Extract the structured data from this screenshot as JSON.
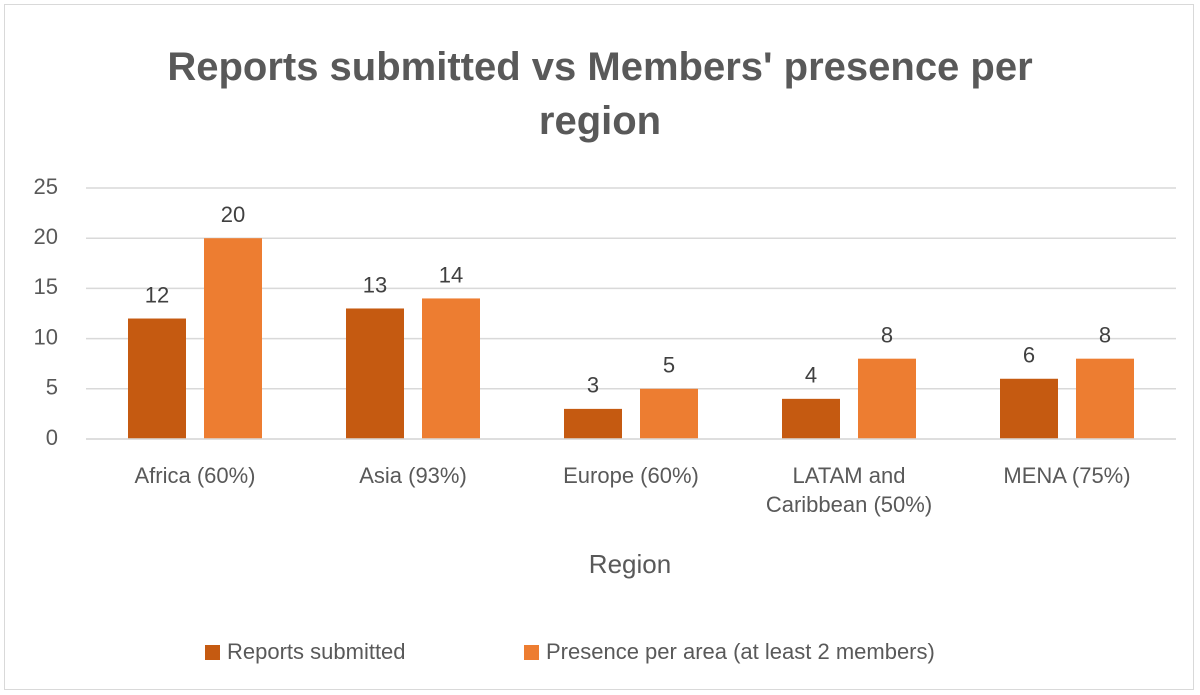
{
  "chart_data": {
    "type": "bar",
    "title": "Reports submitted vs Members' presence per region",
    "x_label": "Region",
    "categories": [
      "Africa (60%)",
      "Asia (93%)",
      "Europe (60%)",
      "LATAM and Caribbean (50%)",
      "MENA (75%)"
    ],
    "series": [
      {
        "name": "Reports submitted",
        "color": "#c55a11",
        "values": [
          12,
          13,
          3,
          4,
          6
        ]
      },
      {
        "name": "Presence per area (at least 2 members)",
        "color": "#ed7d31",
        "values": [
          20,
          14,
          5,
          8,
          8
        ]
      }
    ],
    "ylim": [
      0,
      25
    ],
    "yticks": [
      0,
      5,
      10,
      15,
      20,
      25
    ],
    "grid": true,
    "legend": "bottom"
  }
}
